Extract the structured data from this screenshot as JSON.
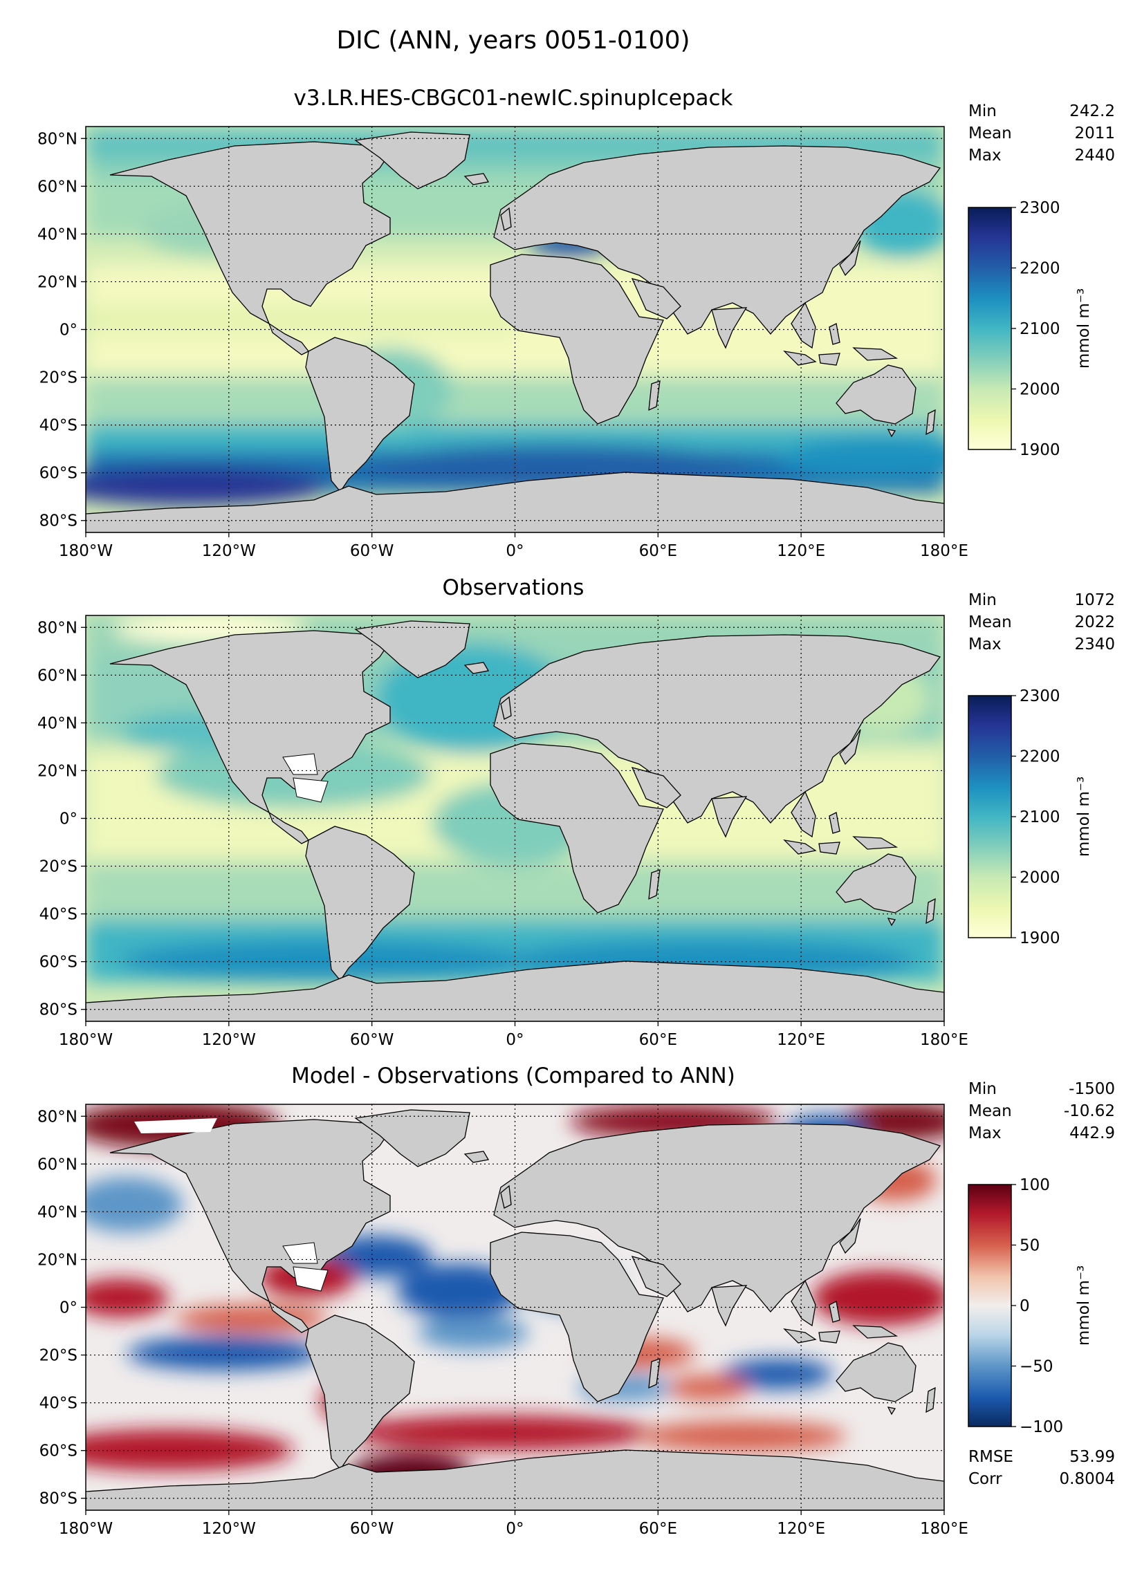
{
  "figure": {
    "title": "DIC (ANN, years 0051-0100)"
  },
  "axes": {
    "lat_ticks": [
      "80°N",
      "60°N",
      "40°N",
      "20°N",
      "0°",
      "20°S",
      "40°S",
      "60°S",
      "80°S"
    ],
    "lon_ticks": [
      "180°W",
      "120°W",
      "60°W",
      "0°",
      "60°E",
      "120°E",
      "180°E"
    ]
  },
  "panels": [
    {
      "title": "v3.LR.HES-CBGC01-newIC.spinupIcepack",
      "stats": [
        {
          "label": "Min",
          "value": "242.2"
        },
        {
          "label": "Mean",
          "value": "2011"
        },
        {
          "label": "Max",
          "value": "2440"
        }
      ],
      "colorbar": {
        "scheme": "YlGnBu",
        "ticks": [
          "2300",
          "2200",
          "2100",
          "2000",
          "1900"
        ],
        "units": "mmol m⁻³",
        "range": [
          1900,
          2300
        ]
      }
    },
    {
      "title": "Observations",
      "stats": [
        {
          "label": "Min",
          "value": "1072"
        },
        {
          "label": "Mean",
          "value": "2022"
        },
        {
          "label": "Max",
          "value": "2340"
        }
      ],
      "colorbar": {
        "scheme": "YlGnBu",
        "ticks": [
          "2300",
          "2200",
          "2100",
          "2000",
          "1900"
        ],
        "units": "mmol m⁻³",
        "range": [
          1900,
          2300
        ]
      }
    },
    {
      "title": "Model - Observations (Compared to ANN)",
      "stats": [
        {
          "label": "Min",
          "value": "-1500"
        },
        {
          "label": "Mean",
          "value": "-10.62"
        },
        {
          "label": "Max",
          "value": "442.9"
        }
      ],
      "colorbar": {
        "scheme": "RdBu_r",
        "ticks": [
          "100",
          "50",
          "0",
          "−50",
          "−100"
        ],
        "units": "mmol m⁻³",
        "range": [
          -100,
          100
        ]
      },
      "metrics": [
        {
          "label": "RMSE",
          "value": "53.99"
        },
        {
          "label": "Corr",
          "value": "0.8004"
        }
      ]
    }
  ],
  "colors": {
    "land": "#cccccc",
    "ylgnbu": [
      "#ffffd9",
      "#edf8b1",
      "#c7e9b4",
      "#7fcdbb",
      "#41b6c4",
      "#1d91c0",
      "#225ea8",
      "#253494",
      "#081d58"
    ],
    "rdbu": [
      "#0a2a60",
      "#1c5aae",
      "#5d96c8",
      "#bcd6e8",
      "#f2eeec",
      "#f1c3ab",
      "#d6604d",
      "#b2182b",
      "#5d0013"
    ]
  }
}
